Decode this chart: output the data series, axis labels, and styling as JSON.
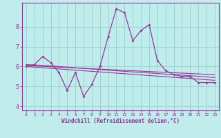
{
  "xlabel": "Windchill (Refroidissement éolien,°C)",
  "ylabel": "",
  "xlim": [
    -0.5,
    23.5
  ],
  "ylim": [
    3.8,
    9.2
  ],
  "background_color": "#c0ecec",
  "grid_color": "#9ad4d4",
  "line_color": "#993399",
  "x_hours": [
    0,
    1,
    2,
    3,
    4,
    5,
    6,
    7,
    8,
    9,
    10,
    11,
    12,
    13,
    14,
    15,
    16,
    17,
    18,
    19,
    20,
    21,
    22,
    23
  ],
  "y_main": [
    6.0,
    6.1,
    6.5,
    6.2,
    5.7,
    4.8,
    5.7,
    4.5,
    5.1,
    6.0,
    7.5,
    8.9,
    8.7,
    7.3,
    7.8,
    8.1,
    6.3,
    5.8,
    5.6,
    5.5,
    5.5,
    5.2,
    5.2,
    5.2
  ],
  "y_trend1": [
    6.05,
    6.03,
    6.01,
    5.99,
    5.97,
    5.95,
    5.93,
    5.91,
    5.89,
    5.87,
    5.85,
    5.83,
    5.81,
    5.79,
    5.77,
    5.75,
    5.73,
    5.71,
    5.69,
    5.67,
    5.65,
    5.63,
    5.61,
    5.59
  ],
  "y_trend2": [
    6.1,
    6.08,
    6.06,
    6.03,
    6.0,
    5.97,
    5.94,
    5.91,
    5.88,
    5.85,
    5.82,
    5.79,
    5.76,
    5.73,
    5.7,
    5.68,
    5.65,
    5.62,
    5.6,
    5.57,
    5.54,
    5.51,
    5.48,
    5.45
  ],
  "y_trend3": [
    6.0,
    5.97,
    5.94,
    5.91,
    5.88,
    5.85,
    5.82,
    5.79,
    5.76,
    5.73,
    5.7,
    5.67,
    5.64,
    5.61,
    5.58,
    5.55,
    5.52,
    5.49,
    5.46,
    5.43,
    5.4,
    5.37,
    5.34,
    5.31
  ],
  "yticks": [
    4,
    5,
    6,
    7,
    8
  ],
  "xticks": [
    0,
    1,
    2,
    3,
    4,
    5,
    6,
    7,
    8,
    9,
    10,
    11,
    12,
    13,
    14,
    15,
    16,
    17,
    18,
    19,
    20,
    21,
    22,
    23
  ]
}
